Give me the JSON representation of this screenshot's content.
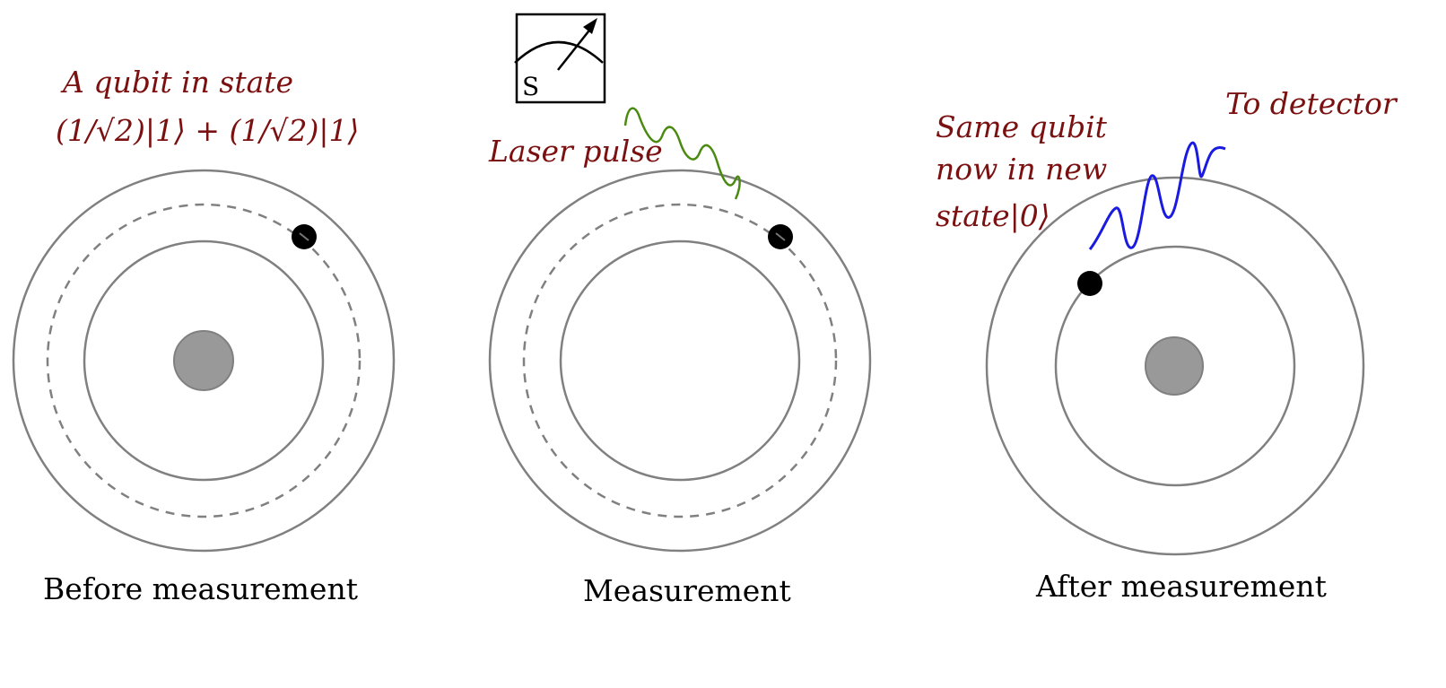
{
  "panels": [
    {
      "caption": "Before measurement",
      "annotation_lines": [
        "A qubit in state",
        "(1/√2)|1⟩ + (1/√2)|1⟩"
      ]
    },
    {
      "caption": "Measurement",
      "annotation_lines": [
        "Laser pulse"
      ],
      "meter_label": "S"
    },
    {
      "caption": "After measurement",
      "annotation_lines": [
        "Same qubit",
        "now in new",
        "state|0⟩"
      ],
      "detector_label": "To detector"
    }
  ],
  "colors": {
    "annotation": "#7a1010",
    "orbit": "#808080",
    "nucleus": "#999999",
    "electron": "#000000",
    "laser_wave": "#4a8a10",
    "emitted_wave": "#1a1ae0"
  },
  "icons": [
    "meter-icon",
    "laser-wave-icon",
    "photon-wave-icon"
  ]
}
